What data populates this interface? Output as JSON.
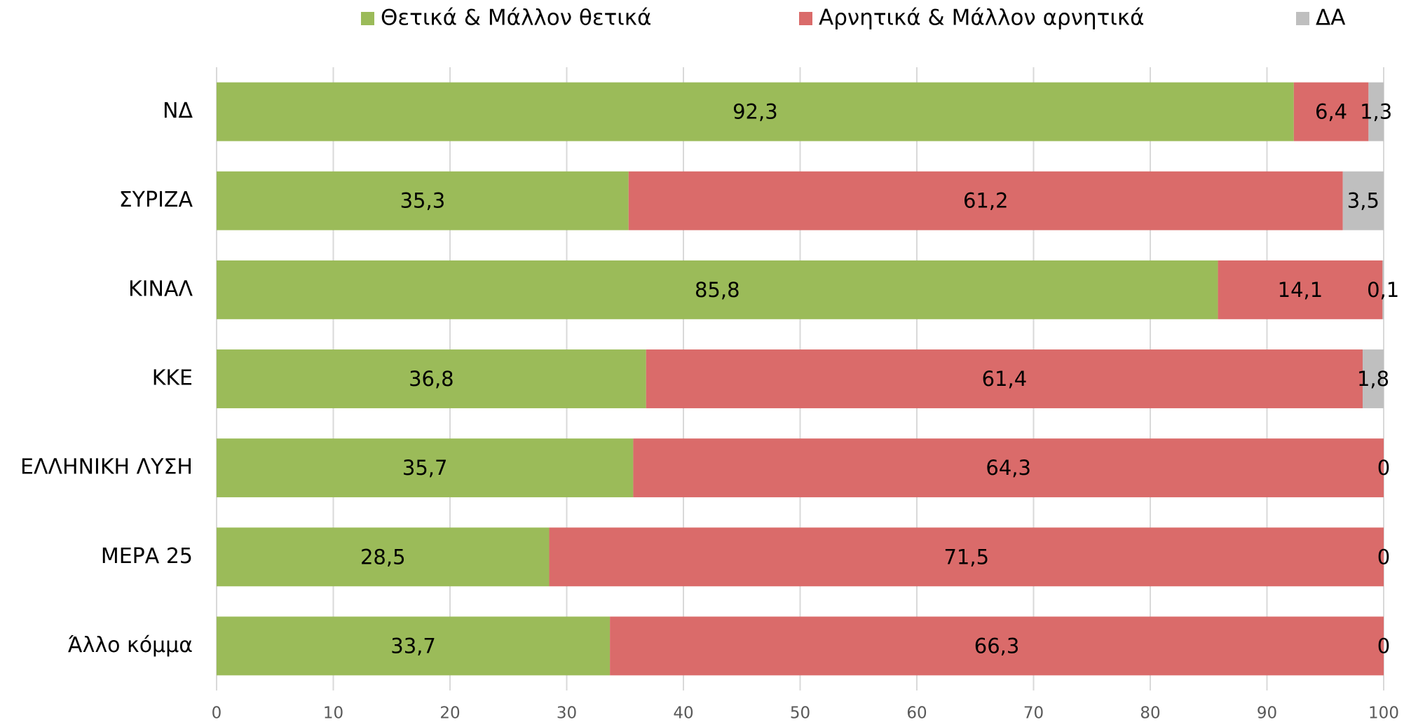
{
  "chart_data": {
    "type": "stacked-bar-horizontal",
    "categories": [
      "ΝΔ",
      "ΣΥΡΙΖΑ",
      "ΚΙΝΑΛ",
      "ΚΚΕ",
      "ΕΛΛΗΝΙΚΗ ΛΥΣΗ",
      "ΜΕΡΑ 25",
      "Άλλο κόμμα"
    ],
    "series": [
      {
        "name": "Θετικά & Μάλλον θετικά",
        "color": "#9bbb59",
        "values": [
          92.3,
          35.3,
          85.8,
          36.8,
          35.7,
          28.5,
          33.7
        ],
        "value_labels": [
          "92,3",
          "35,3",
          "85,8",
          "36,8",
          "35,7",
          "28,5",
          "33,7"
        ]
      },
      {
        "name": "Αρνητικά & Μάλλον αρνητικά",
        "color": "#da6b6a",
        "values": [
          6.4,
          61.2,
          14.1,
          61.4,
          64.3,
          71.5,
          66.3
        ],
        "value_labels": [
          "6,4",
          "61,2",
          "14,1",
          "61,4",
          "64,3",
          "71,5",
          "66,3"
        ]
      },
      {
        "name": "ΔΑ",
        "color": "#bfbfbf",
        "values": [
          1.3,
          3.5,
          0.1,
          1.8,
          0,
          0,
          0
        ],
        "value_labels": [
          "1,3",
          "3,5",
          "0,1",
          "1,8",
          "0",
          "0",
          "0"
        ]
      }
    ],
    "xlim": [
      0,
      100
    ],
    "xticks": [
      0,
      10,
      20,
      30,
      40,
      50,
      60,
      70,
      80,
      90,
      100
    ],
    "grid": true,
    "legend": "top"
  }
}
